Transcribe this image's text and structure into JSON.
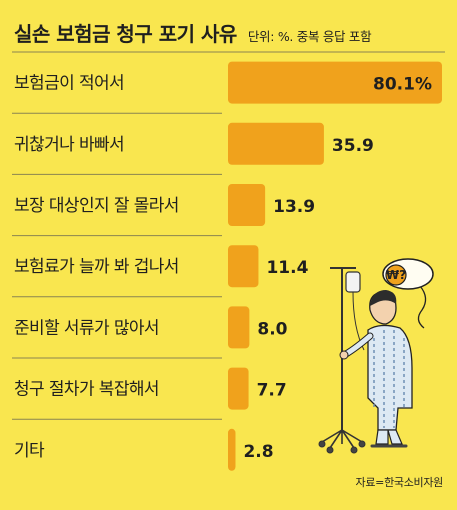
{
  "header": {
    "title": "실손 보험금 청구 포기 사유",
    "subtitle": "단위: %. 중복 응답 포함"
  },
  "source": "자료=한국소비자원",
  "colors": {
    "background": "#f9e64f",
    "bar": "#f0a21c",
    "divider": "#8a8450",
    "text": "#1f1f1f"
  },
  "illustration": {
    "thought_bubble_symbol": "₩?",
    "icon": "hospital-patient-with-iv-stand-icon"
  },
  "chart_data": {
    "type": "bar",
    "orientation": "horizontal",
    "categories": [
      "보험금이 적어서",
      "귀찮거나 바빠서",
      "보장 대상인지 잘 몰라서",
      "보험료가 늘까 봐 겁나서",
      "준비할 서류가 많아서",
      "청구 절차가 복잡해서",
      "기타"
    ],
    "values": [
      80.1,
      35.9,
      13.9,
      11.4,
      8.0,
      7.7,
      2.8
    ],
    "value_labels": [
      "80.1%",
      "35.9",
      "13.9",
      "11.4",
      "8.0",
      "7.7",
      "2.8"
    ],
    "xlim": [
      0,
      80.1
    ],
    "grid": false,
    "legend": "none"
  }
}
